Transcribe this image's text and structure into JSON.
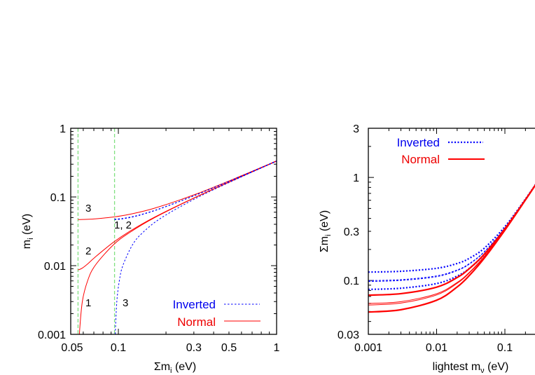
{
  "colors": {
    "inverted": "#0000ff",
    "normal": "#ff0000",
    "threshold": "#80e080",
    "axis": "#000000"
  },
  "chart_data": [
    {
      "type": "line",
      "xlabel": "Σm",
      "xlabel_sub": "i",
      "xlabel_unit": " (eV)",
      "ylabel": "m",
      "ylabel_sub": "i",
      "ylabel_unit": " (eV)",
      "xscale": "log",
      "yscale": "log",
      "xlim": [
        0.05,
        1
      ],
      "ylim": [
        0.001,
        1
      ],
      "xticks": [
        {
          "v": 0.05,
          "label": "0.05"
        },
        {
          "v": 0.1,
          "label": "0.1"
        },
        {
          "v": 0.3,
          "label": "0.3"
        },
        {
          "v": 0.5,
          "label": "0.5"
        },
        {
          "v": 1,
          "label": "1"
        }
      ],
      "yticks": [
        {
          "v": 0.001,
          "label": "0.001"
        },
        {
          "v": 0.01,
          "label": "0.01"
        },
        {
          "v": 0.1,
          "label": "0.1"
        },
        {
          "v": 1,
          "label": "1"
        }
      ],
      "legend": {
        "placement": "bottom-right",
        "entries": [
          {
            "label": "Inverted",
            "series": "inverted"
          },
          {
            "label": "Normal",
            "series": "normal"
          }
        ]
      },
      "vertical_lines": [
        0.0556,
        0.0946
      ],
      "annotations": [
        {
          "text": "3",
          "series": "normal",
          "mass": "m3"
        },
        {
          "text": "2",
          "series": "normal",
          "mass": "m2"
        },
        {
          "text": "1",
          "series": "normal",
          "mass": "m1"
        },
        {
          "text": "1, 2",
          "series": "inverted",
          "mass": "m1,m2"
        },
        {
          "text": "3",
          "series": "inverted",
          "mass": "m3"
        }
      ],
      "series": [
        {
          "name": "Normal",
          "key": "normal",
          "x": [
            0.0556,
            0.0561,
            0.0567,
            0.0592,
            0.0639,
            0.0712,
            0.0928,
            0.1169,
            0.1693,
            0.311,
            0.6056,
            0.9934
          ],
          "m1": [
            null,
            0.0005,
            0.001,
            0.003,
            0.006,
            0.01,
            0.02,
            0.03,
            0.05,
            0.1,
            0.2,
            0.33
          ],
          "m2": [
            0.00872,
            0.00873,
            0.00878,
            0.00922,
            0.01058,
            0.01327,
            0.0218,
            0.03124,
            0.05076,
            0.1004,
            0.2002,
            0.3301
          ],
          "m3": [
            0.0469,
            0.0469,
            0.04691,
            0.047,
            0.04729,
            0.04796,
            0.051,
            0.0557,
            0.0686,
            0.1105,
            0.2054,
            0.3333
          ]
        },
        {
          "name": "Inverted",
          "key": "inverted",
          "x": [
            0.0946,
            0.0951,
            0.0956,
            0.0978,
            0.1014,
            0.1067,
            0.1227,
            0.142,
            0.1877,
            0.3213,
            0.611,
            0.9967
          ],
          "m1": [
            0.0469,
            0.0469,
            0.04691,
            0.047,
            0.04729,
            0.04796,
            0.051,
            0.0557,
            0.0686,
            0.1105,
            0.2054,
            0.3333
          ],
          "m2": [
            0.0477,
            0.0477,
            0.0477,
            0.04781,
            0.0481,
            0.04874,
            0.0517,
            0.0563,
            0.0691,
            0.1108,
            0.2056,
            0.3334
          ],
          "m3": [
            null,
            0.0005,
            0.001,
            0.003,
            0.006,
            0.01,
            0.02,
            0.03,
            0.05,
            0.1,
            0.2,
            0.33
          ]
        }
      ]
    },
    {
      "type": "line",
      "xlabel": "lightest m",
      "xlabel_sub": "ν",
      "xlabel_unit": " (eV)",
      "ylabel": "Σm",
      "ylabel_sub": "i",
      "ylabel_unit": " (eV)",
      "xscale": "log",
      "yscale": "log",
      "xlim": [
        0.001,
        0.276
      ],
      "ylim": [
        0.03,
        3
      ],
      "xticks": [
        {
          "v": 0.001,
          "label": "0.001"
        },
        {
          "v": 0.01,
          "label": "0.01"
        },
        {
          "v": 0.1,
          "label": "0.1"
        }
      ],
      "yticks": [
        {
          "v": 0.03,
          "label": "0.03"
        },
        {
          "v": 0.1,
          "label": "0.1"
        },
        {
          "v": 0.3,
          "label": "0.3"
        },
        {
          "v": 1,
          "label": "1"
        },
        {
          "v": 3,
          "label": "3"
        }
      ],
      "legend": {
        "placement": "top-left",
        "entries": [
          {
            "label": "Inverted",
            "series": "inverted"
          },
          {
            "label": "Normal",
            "series": "normal"
          }
        ]
      },
      "x": [
        0.001,
        0.003,
        0.01,
        0.02,
        0.03,
        0.05,
        0.1,
        0.2,
        0.3
      ],
      "series": [
        {
          "key": "inverted",
          "band": "bound",
          "values": [
            0.1206,
            0.1228,
            0.1313,
            0.1462,
            0.1638,
            0.2059,
            0.333,
            0.617,
            0.912
          ]
        },
        {
          "key": "inverted",
          "band": "central",
          "values": [
            0.0997,
            0.1019,
            0.1108,
            0.1265,
            0.1455,
            0.1905,
            0.323,
            0.612,
            0.908
          ]
        },
        {
          "key": "inverted",
          "band": "central",
          "values": [
            0.0978,
            0.1,
            0.1088,
            0.1247,
            0.1439,
            0.1891,
            0.322,
            0.611,
            0.907
          ]
        },
        {
          "key": "inverted",
          "band": "bound",
          "values": [
            0.0819,
            0.0841,
            0.0933,
            0.1103,
            0.1308,
            0.1786,
            0.316,
            0.608,
            0.906
          ]
        },
        {
          "key": "normal",
          "band": "bound",
          "values": [
            0.072,
            0.0745,
            0.0861,
            0.1068,
            0.1299,
            0.18,
            0.318,
            0.609,
            0.906
          ]
        },
        {
          "key": "normal",
          "band": "central",
          "values": [
            0.0598,
            0.0623,
            0.0743,
            0.0957,
            0.1195,
            0.1715,
            0.312,
            0.606,
            0.904
          ]
        },
        {
          "key": "normal",
          "band": "central",
          "values": [
            0.0578,
            0.0603,
            0.0723,
            0.0938,
            0.1178,
            0.17,
            0.311,
            0.6055,
            0.9039
          ]
        },
        {
          "key": "normal",
          "band": "bound",
          "values": [
            0.0494,
            0.052,
            0.0643,
            0.0865,
            0.1113,
            0.165,
            0.308,
            0.604,
            0.903
          ]
        }
      ]
    }
  ]
}
